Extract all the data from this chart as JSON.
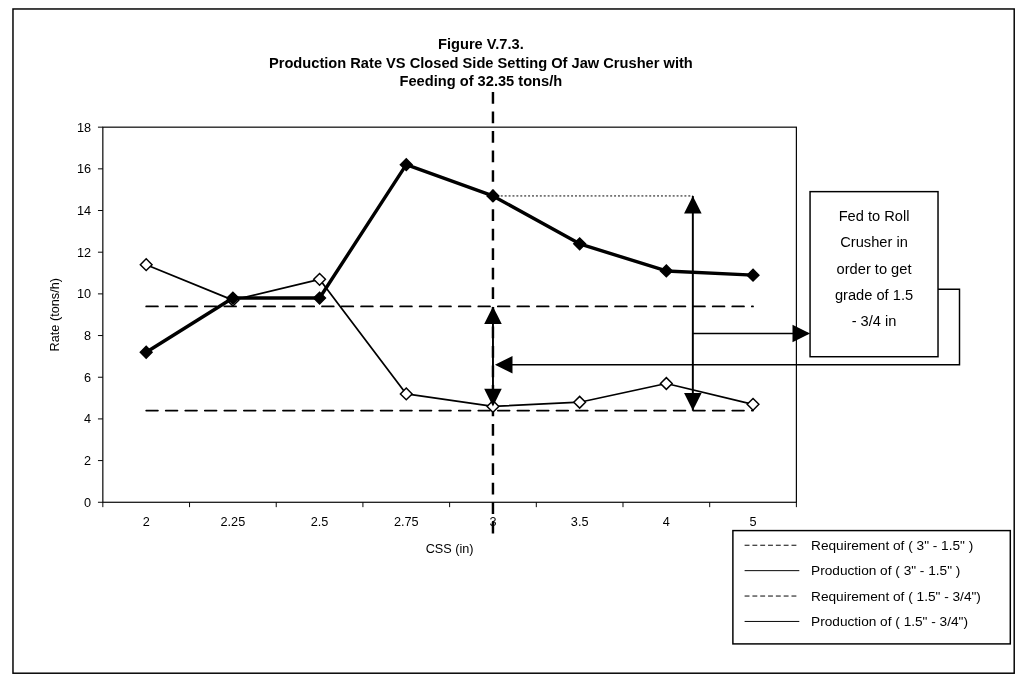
{
  "chart_data": {
    "type": "line",
    "title": "Figure V.7.3.\nProduction Rate VS Closed Side Setting Of Jaw Crusher with\nFeeding of   32.35  tons/h",
    "xlabel": "CSS (in)",
    "ylabel": "Rate (tons/h)",
    "categories": [
      "2",
      "2.25",
      "2.5",
      "2.75",
      "3",
      "3.5",
      "4",
      "5"
    ],
    "series": [
      {
        "name": "Requirement of ( 3\" - 1.5\" )",
        "color": "#000000",
        "line_style": "dashed",
        "marker": "none",
        "values": [
          9.4,
          9.4,
          9.4,
          9.4,
          9.4,
          9.4,
          9.4,
          9.4
        ]
      },
      {
        "name": "Production of    ( 3\" - 1.5\" )",
        "color": "#000000",
        "line_style": "solid",
        "marker": "diamond",
        "values": [
          7.2,
          9.8,
          9.8,
          16.2,
          14.7,
          12.4,
          11.1,
          10.9
        ]
      },
      {
        "name": "Requirement of ( 1.5\" - 3/4\")",
        "color": "#000000",
        "line_style": "dashed",
        "marker": "none",
        "values": [
          4.4,
          4.4,
          4.4,
          4.4,
          4.4,
          4.4,
          4.4,
          4.4
        ]
      },
      {
        "name": "Production of    ( 1.5\" - 3/4\")",
        "color": "#000000",
        "line_style": "solid",
        "marker": "diamond",
        "values": [
          11.4,
          9.7,
          10.7,
          5.2,
          4.6,
          4.8,
          5.7,
          4.7
        ]
      }
    ],
    "ylim": [
      0,
      18
    ],
    "yticks": [
      0,
      2,
      4,
      6,
      8,
      10,
      12,
      14,
      16,
      18
    ],
    "grid": false,
    "legend": "bottom right",
    "ref_lines": [
      {
        "axis": "x",
        "value": "3",
        "label": null,
        "line_style": "dashed",
        "color": "#000000"
      }
    ],
    "annotations": [
      "Fed to Roll Crusher in order to get grade of 1.5 - 3/4 in"
    ]
  }
}
